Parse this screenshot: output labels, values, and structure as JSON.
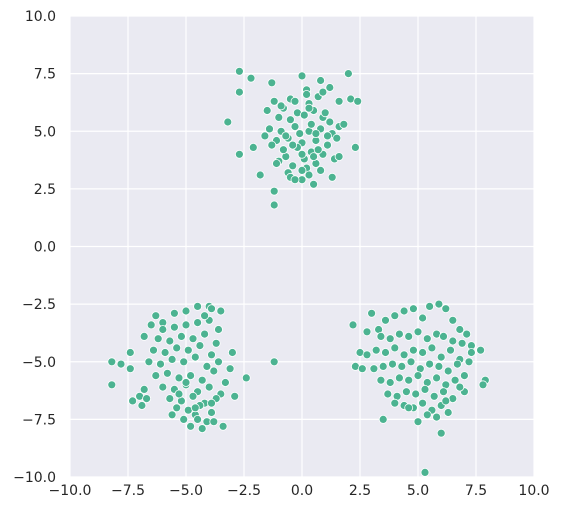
{
  "chart_data": {
    "type": "scatter",
    "title": "",
    "xlabel": "",
    "ylabel": "",
    "xlim": [
      -10,
      10
    ],
    "ylim": [
      -10,
      10
    ],
    "grid": true,
    "legend": "none",
    "colors": {
      "background": "#EAEAF2",
      "grid": "#FFFFFF",
      "point": "#4CB391",
      "point_edge": "#FFFFFF",
      "text": "#262626"
    },
    "x_ticks": [
      "−10.0",
      "−7.5",
      "−5.0",
      "−2.5",
      "0.0",
      "2.5",
      "5.0",
      "7.5",
      "10.0"
    ],
    "y_ticks": [
      "−10.0",
      "−7.5",
      "−5.0",
      "−2.5",
      "0.0",
      "2.5",
      "5.0",
      "7.5",
      "10.0"
    ],
    "series": [
      {
        "x": [
          -2.7,
          -2.2,
          -1.3,
          0.0,
          0.8,
          2.0,
          -3.2,
          -2.7,
          -1.2,
          -1.2,
          -1.8,
          -2.1,
          -2.7,
          -1.2,
          0.2,
          1.2,
          1.6,
          2.1,
          2.4,
          2.3,
          0.0,
          0.5,
          1.3,
          -0.5,
          -0.8,
          0.3,
          0.7,
          -0.2,
          0.5,
          -1.0,
          -0.5,
          0.1,
          0.9,
          1.2,
          1.6,
          -1.4,
          -0.9,
          -0.3,
          0.3,
          0.8,
          1.3,
          -1.1,
          -0.6,
          0.0,
          0.6,
          1.1,
          -0.8,
          -0.2,
          0.4,
          0.9,
          -1.3,
          -0.7,
          0.1,
          0.6,
          1.4,
          -1.0,
          -0.4,
          0.2,
          0.8,
          -0.6,
          0.0,
          0.5,
          1.1,
          -0.9,
          -0.3,
          0.3,
          -1.5,
          1.8,
          -0.1,
          0.4,
          -0.7,
          1.0,
          -0.4,
          0.7,
          1.5,
          0.2,
          -1.6,
          0.0,
          -0.5,
          1.6,
          -1.1,
          0.9,
          0.3,
          -0.3,
          -0.8,
          0.6
        ],
        "y": [
          7.6,
          7.3,
          7.1,
          7.4,
          7.2,
          7.5,
          5.4,
          4.0,
          2.4,
          1.8,
          3.1,
          4.3,
          6.7,
          6.3,
          6.8,
          6.9,
          6.3,
          6.4,
          6.3,
          4.3,
          2.9,
          2.7,
          3.0,
          6.4,
          6.0,
          6.2,
          6.5,
          5.8,
          5.9,
          5.6,
          5.5,
          5.7,
          5.6,
          5.4,
          5.2,
          5.1,
          5.0,
          5.2,
          5.0,
          5.1,
          4.9,
          4.6,
          4.7,
          4.5,
          4.6,
          4.4,
          4.2,
          4.3,
          4.1,
          4.0,
          4.4,
          3.9,
          3.8,
          3.6,
          3.8,
          3.7,
          3.5,
          3.4,
          3.3,
          3.2,
          3.3,
          3.9,
          4.8,
          6.1,
          6.3,
          6.0,
          5.9,
          5.3,
          4.9,
          5.3,
          4.8,
          5.8,
          4.4,
          4.2,
          4.7,
          6.6,
          4.8,
          4.0,
          3.0,
          3.9,
          3.6,
          6.7,
          3.1,
          2.9,
          4.2,
          4.9
        ]
      },
      {
        "x": [
          -8.2,
          -8.2,
          -7.8,
          -7.4,
          -7.3,
          -6.8,
          -6.3,
          -6.0,
          -5.5,
          -5.0,
          -4.5,
          -4.0,
          -3.5,
          -3.0,
          -2.4,
          -1.2,
          -6.5,
          -6.0,
          -5.5,
          -5.0,
          -4.5,
          -4.0,
          -3.6,
          -6.2,
          -5.7,
          -5.2,
          -4.7,
          -4.2,
          -3.7,
          -6.4,
          -5.9,
          -5.4,
          -4.9,
          -4.4,
          -3.9,
          -6.6,
          -6.1,
          -5.6,
          -5.1,
          -4.6,
          -4.1,
          -3.6,
          -3.1,
          -6.3,
          -5.8,
          -5.3,
          -4.8,
          -4.3,
          -3.8,
          -3.3,
          -6.0,
          -5.5,
          -5.0,
          -4.5,
          -4.0,
          -3.5,
          -5.7,
          -5.2,
          -4.7,
          -4.2,
          -3.7,
          -5.4,
          -4.9,
          -4.4,
          -3.9,
          -5.1,
          -4.6,
          -4.1,
          -4.8,
          -4.3,
          -3.4,
          -4.5,
          -3.9,
          -3.9,
          -5.6,
          -6.9,
          -7.4,
          -7.0,
          -6.7,
          -3.8,
          -2.9,
          -5.0,
          -4.2,
          -4.6,
          -5.3,
          -6.8
        ],
        "y": [
          -5.0,
          -6.0,
          -5.1,
          -4.6,
          -6.7,
          -3.9,
          -3.0,
          -3.3,
          -2.9,
          -2.8,
          -2.6,
          -2.6,
          -2.8,
          -4.6,
          -5.7,
          -5.0,
          -3.4,
          -3.6,
          -3.5,
          -3.4,
          -3.3,
          -3.2,
          -3.6,
          -4.0,
          -4.1,
          -3.9,
          -4.0,
          -3.8,
          -4.2,
          -4.5,
          -4.6,
          -4.4,
          -4.5,
          -4.3,
          -4.7,
          -5.0,
          -5.1,
          -4.9,
          -5.0,
          -4.8,
          -5.2,
          -5.0,
          -5.3,
          -5.6,
          -5.5,
          -5.7,
          -5.6,
          -5.8,
          -5.4,
          -5.9,
          -6.1,
          -6.2,
          -6.0,
          -6.3,
          -6.1,
          -6.4,
          -6.6,
          -6.7,
          -6.5,
          -6.8,
          -6.6,
          -7.0,
          -7.1,
          -6.9,
          -7.2,
          -7.5,
          -7.3,
          -7.6,
          -7.8,
          -7.9,
          -7.8,
          -7.5,
          -6.8,
          -2.7,
          -7.3,
          -6.9,
          -5.3,
          -6.5,
          -6.6,
          -7.6,
          -6.5,
          -5.9,
          -3.0,
          -7.0,
          -6.4,
          -6.2
        ]
      },
      {
        "x": [
          2.2,
          2.5,
          2.8,
          3.0,
          3.3,
          3.6,
          4.0,
          4.4,
          4.8,
          5.2,
          5.5,
          5.9,
          6.2,
          6.5,
          6.8,
          7.1,
          7.3,
          7.7,
          7.9,
          2.3,
          2.6,
          3.4,
          3.8,
          4.2,
          4.6,
          5.0,
          5.4,
          5.8,
          6.1,
          6.5,
          6.9,
          7.3,
          2.8,
          3.2,
          3.6,
          4.0,
          4.4,
          4.8,
          5.2,
          5.6,
          6.0,
          6.4,
          6.8,
          7.2,
          3.1,
          3.5,
          3.9,
          4.3,
          4.7,
          5.1,
          5.5,
          5.9,
          6.3,
          6.7,
          7.0,
          3.4,
          3.8,
          4.2,
          4.6,
          5.0,
          5.4,
          5.8,
          6.2,
          6.6,
          7.0,
          3.7,
          4.1,
          4.5,
          4.9,
          5.3,
          5.7,
          6.1,
          6.5,
          6.8,
          4.0,
          4.4,
          4.8,
          5.2,
          5.6,
          6.0,
          6.3,
          4.6,
          5.0,
          5.4,
          5.8,
          6.2,
          3.5,
          7.8,
          6.0,
          5.3
        ],
        "y": [
          -3.4,
          -4.6,
          -3.7,
          -2.9,
          -3.6,
          -3.2,
          -3.0,
          -2.8,
          -2.7,
          -3.1,
          -2.6,
          -2.5,
          -2.7,
          -3.2,
          -3.6,
          -3.8,
          -4.3,
          -4.5,
          -5.8,
          -5.2,
          -5.3,
          -3.9,
          -4.0,
          -3.8,
          -3.9,
          -3.7,
          -4.0,
          -3.8,
          -3.9,
          -4.1,
          -4.2,
          -4.6,
          -4.7,
          -4.5,
          -4.6,
          -4.4,
          -4.7,
          -4.5,
          -4.6,
          -4.4,
          -4.8,
          -4.5,
          -4.9,
          -5.0,
          -5.3,
          -5.2,
          -5.1,
          -5.2,
          -5.0,
          -5.3,
          -5.1,
          -5.2,
          -5.4,
          -5.1,
          -5.6,
          -5.8,
          -5.9,
          -5.7,
          -5.8,
          -5.6,
          -5.9,
          -5.7,
          -6.0,
          -5.8,
          -6.3,
          -6.4,
          -6.5,
          -6.3,
          -6.4,
          -6.2,
          -6.5,
          -6.3,
          -6.6,
          -6.1,
          -6.8,
          -6.9,
          -7.0,
          -6.8,
          -7.1,
          -6.9,
          -7.2,
          -7.0,
          -7.6,
          -7.3,
          -7.4,
          -6.7,
          -7.5,
          -6.0,
          -8.1,
          -9.8
        ]
      }
    ]
  }
}
